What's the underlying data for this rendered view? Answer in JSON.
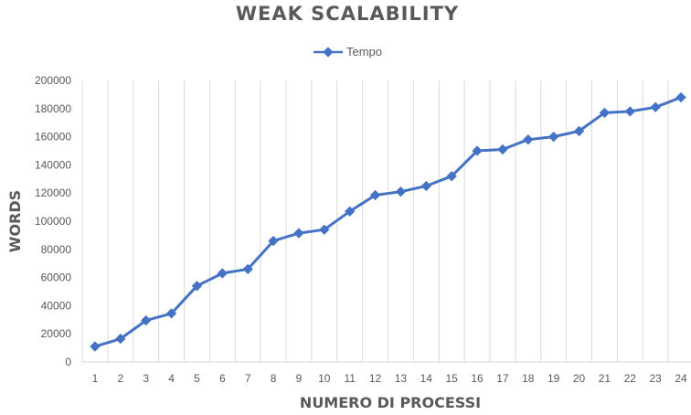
{
  "chart_data": {
    "type": "line",
    "title": "WEAK SCALABILITY",
    "xlabel": "NUMERO DI PROCESSI",
    "ylabel": "WORDS",
    "x": [
      1,
      2,
      3,
      4,
      5,
      6,
      7,
      8,
      9,
      10,
      11,
      12,
      13,
      14,
      15,
      16,
      17,
      18,
      19,
      20,
      21,
      22,
      23,
      24
    ],
    "series": [
      {
        "name": "Tempo",
        "values": [
          11000,
          16500,
          29500,
          34500,
          54000,
          63000,
          66000,
          86000,
          91500,
          94000,
          107000,
          118500,
          121000,
          125000,
          132000,
          150000,
          151000,
          158000,
          160000,
          164000,
          177000,
          178000,
          181000,
          188000
        ]
      }
    ],
    "ylim": [
      0,
      200000
    ],
    "yticks": [
      0,
      20000,
      40000,
      60000,
      80000,
      100000,
      120000,
      140000,
      160000,
      180000,
      200000
    ],
    "grid": "vertical",
    "legend_position": "top-center",
    "line_color": "#4472c4"
  }
}
